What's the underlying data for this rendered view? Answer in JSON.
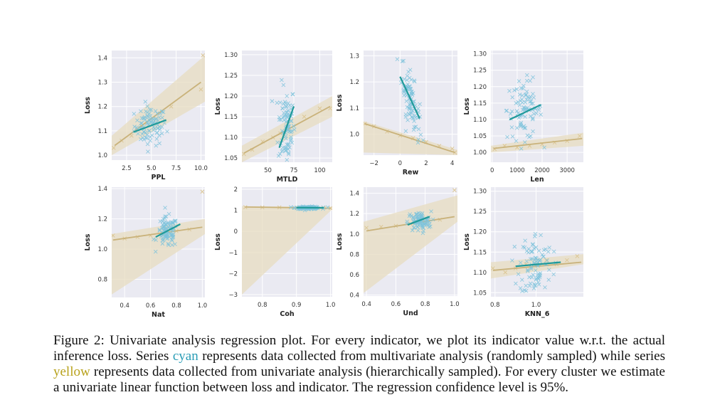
{
  "figure": {
    "colors": {
      "cyan_points": "#7ec3dc",
      "cyan_line": "#1f9a9a",
      "yellow_points": "#dcc796",
      "yellow_line": "#c9b27a",
      "yellow_band": "#e7dcc0",
      "panel_bg": "#eaeaf2"
    }
  },
  "chart_data": [
    {
      "type": "scatter",
      "xlabel": "PPL",
      "ylabel": "Loss",
      "xlim": [
        1.0,
        10.4
      ],
      "ylim": [
        0.98,
        1.43
      ],
      "xticks": [
        2.5,
        5.0,
        7.5,
        10.0
      ],
      "xtick_labels": [
        "2.5",
        "5.0",
        "7.5",
        "10.0"
      ],
      "yticks": [
        1.0,
        1.1,
        1.2,
        1.3,
        1.4
      ],
      "ytick_labels": [
        "1.0",
        "1.1",
        "1.2",
        "1.3",
        "1.4"
      ],
      "cyan": {
        "xc": 4.9,
        "xs": 0.8,
        "yc": 1.12,
        "ys": 0.04,
        "line": [
          [
            3.2,
            1.095
          ],
          [
            6.5,
            1.145
          ]
        ]
      },
      "yellow": {
        "x": [
          1.2,
          2.0,
          3.0,
          4.0,
          5.5,
          7.0,
          10.0,
          10.2
        ],
        "y": [
          1.03,
          1.06,
          1.08,
          1.12,
          1.15,
          1.2,
          1.27,
          1.41
        ],
        "line": [
          [
            1.3,
            1.04
          ],
          [
            10.0,
            1.3
          ]
        ],
        "band_lo": [
          1.0,
          1.22
        ],
        "band_hi": [
          1.08,
          1.41
        ]
      }
    },
    {
      "type": "scatter",
      "xlabel": "MTLD",
      "ylabel": "Loss",
      "xlim": [
        25,
        112
      ],
      "ylim": [
        1.04,
        1.31
      ],
      "xticks": [
        50,
        75,
        100
      ],
      "xtick_labels": [
        "50",
        "75",
        "100"
      ],
      "yticks": [
        1.05,
        1.1,
        1.15,
        1.2,
        1.25,
        1.3
      ],
      "ytick_labels": [
        "1.05",
        "1.10",
        "1.15",
        "1.20",
        "1.25",
        "1.30"
      ],
      "cyan": {
        "xc": 68,
        "xs": 4,
        "yc": 1.13,
        "ys": 0.05,
        "line": [
          [
            61,
            1.075
          ],
          [
            75,
            1.175
          ]
        ]
      },
      "yellow": {
        "x": [
          27,
          35,
          45,
          55,
          62,
          70,
          85,
          100,
          110
        ],
        "y": [
          1.06,
          1.07,
          1.09,
          1.1,
          1.11,
          1.12,
          1.15,
          1.17,
          1.17
        ],
        "line": [
          [
            27,
            1.062
          ],
          [
            110,
            1.175
          ]
        ],
        "band_lo": [
          1.04,
          1.15
        ],
        "band_hi": [
          1.08,
          1.2
        ]
      }
    },
    {
      "type": "scatter",
      "xlabel": "Rew",
      "ylabel": "Loss",
      "xlim": [
        -2.8,
        4.4
      ],
      "ylim": [
        0.92,
        1.32
      ],
      "xticks": [
        -2,
        0,
        2,
        4
      ],
      "xtick_labels": [
        "−2",
        "0",
        "2",
        "4"
      ],
      "yticks": [
        1.0,
        1.1,
        1.2,
        1.3
      ],
      "ytick_labels": [
        "1.0",
        "1.1",
        "1.2",
        "1.3"
      ],
      "cyan": {
        "xc": 0.8,
        "xs": 0.35,
        "yc": 1.13,
        "ys": 0.05,
        "line": [
          [
            0.0,
            1.22
          ],
          [
            1.5,
            1.06
          ]
        ],
        "slope": -0.1
      },
      "yellow": {
        "x": [
          -2.7,
          -2.0,
          -1.0,
          0,
          1.0,
          2.0,
          3.0,
          4.0,
          4.2
        ],
        "y": [
          1.04,
          1.03,
          1.01,
          0.995,
          0.985,
          0.97,
          0.955,
          0.945,
          0.93
        ],
        "line": [
          [
            -2.7,
            1.04
          ],
          [
            4.2,
            0.93
          ]
        ],
        "band_lo": [
          0.93,
          0.92
        ],
        "band_hi": [
          1.05,
          0.94
        ]
      }
    },
    {
      "type": "scatter",
      "xlabel": "Len",
      "ylabel": "Loss",
      "xlim": [
        -50,
        3650
      ],
      "ylim": [
        0.97,
        1.31
      ],
      "xticks": [
        0,
        1000,
        2000,
        3000
      ],
      "xtick_labels": [
        "0",
        "1000",
        "2000",
        "3000"
      ],
      "yticks": [
        1.0,
        1.05,
        1.1,
        1.15,
        1.2,
        1.25,
        1.3
      ],
      "ytick_labels": [
        "1.00",
        "1.05",
        "1.10",
        "1.15",
        "1.20",
        "1.25",
        "1.30"
      ],
      "cyan": {
        "xc": 1300,
        "xs": 350,
        "yc": 1.13,
        "ys": 0.045,
        "line": [
          [
            700,
            1.1
          ],
          [
            1950,
            1.145
          ]
        ]
      },
      "yellow": {
        "x": [
          100,
          500,
          1000,
          1500,
          2000,
          2500,
          3000,
          3500
        ],
        "y": [
          1.01,
          1.02,
          1.015,
          1.02,
          1.025,
          1.03,
          1.035,
          1.05
        ],
        "line": [
          [
            50,
            1.012
          ],
          [
            3600,
            1.042
          ]
        ],
        "band_lo": [
          1.0,
          1.02
        ],
        "band_hi": [
          1.02,
          1.06
        ]
      }
    },
    {
      "type": "scatter",
      "xlabel": "Nat",
      "ylabel": "Loss",
      "xlim": [
        0.3,
        1.02
      ],
      "ylim": [
        0.68,
        1.41
      ],
      "xticks": [
        0.4,
        0.6,
        0.8,
        1.0
      ],
      "xtick_labels": [
        "0.4",
        "0.6",
        "0.8",
        "1.0"
      ],
      "yticks": [
        0.8,
        1.0,
        1.2,
        1.4
      ],
      "ytick_labels": [
        "0.8",
        "1.0",
        "1.2",
        "1.4"
      ],
      "cyan": {
        "xc": 0.73,
        "xs": 0.04,
        "yc": 1.11,
        "ys": 0.05,
        "line": [
          [
            0.64,
            1.08
          ],
          [
            0.83,
            1.165
          ]
        ]
      },
      "yellow": {
        "x": [
          0.31,
          0.4,
          0.5,
          0.6,
          0.7,
          0.8,
          0.9,
          1.0
        ],
        "y": [
          1.09,
          1.07,
          1.08,
          1.09,
          1.1,
          1.12,
          1.13,
          1.38
        ],
        "line": [
          [
            0.31,
            1.06
          ],
          [
            1.0,
            1.145
          ]
        ],
        "band_lo": [
          0.7,
          1.1
        ],
        "band_hi": [
          1.1,
          1.2
        ]
      }
    },
    {
      "type": "scatter",
      "xlabel": "Coh",
      "ylabel": "Loss",
      "xlim": [
        0.74,
        1.005
      ],
      "ylim": [
        -3.1,
        2.1
      ],
      "xticks": [
        0.8,
        0.9,
        1.0
      ],
      "xtick_labels": [
        "0.8",
        "0.9",
        "1.0"
      ],
      "yticks": [
        -3,
        -2,
        -1,
        0,
        1,
        2
      ],
      "ytick_labels": [
        "−3",
        "−2",
        "−1",
        "0",
        "1",
        "2"
      ],
      "cyan": {
        "xc": 0.935,
        "xs": 0.018,
        "yc": 1.12,
        "ys": 0.03,
        "line": [
          [
            0.9,
            1.13
          ],
          [
            0.98,
            1.12
          ]
        ]
      },
      "yellow": {
        "x": [
          0.75,
          0.8,
          0.85,
          0.9,
          0.95,
          0.98,
          1.0
        ],
        "y": [
          1.15,
          1.14,
          1.14,
          1.13,
          1.12,
          1.12,
          1.1
        ],
        "line": [
          [
            0.75,
            1.16
          ],
          [
            1.0,
            1.1
          ]
        ],
        "band_lo": [
          -3.0,
          1.05
        ],
        "band_hi": [
          1.2,
          1.17
        ]
      }
    },
    {
      "type": "scatter",
      "xlabel": "Und",
      "ylabel": "Loss",
      "xlim": [
        0.38,
        1.02
      ],
      "ylim": [
        0.39,
        1.46
      ],
      "xticks": [
        0.4,
        0.6,
        0.8,
        1.0
      ],
      "xtick_labels": [
        "0.4",
        "0.6",
        "0.8",
        "1.0"
      ],
      "yticks": [
        0.4,
        0.6,
        0.8,
        1.0,
        1.2,
        1.4
      ],
      "ytick_labels": [
        "0.4",
        "0.6",
        "0.8",
        "1.0",
        "1.2",
        "1.4"
      ],
      "cyan": {
        "xc": 0.76,
        "xs": 0.04,
        "yc": 1.12,
        "ys": 0.05,
        "line": [
          [
            0.68,
            1.09
          ],
          [
            0.83,
            1.17
          ]
        ]
      },
      "yellow": {
        "x": [
          0.4,
          0.5,
          0.6,
          0.7,
          0.8,
          0.9,
          1.0
        ],
        "y": [
          1.06,
          1.07,
          1.08,
          1.1,
          1.12,
          1.14,
          1.43
        ],
        "line": [
          [
            0.4,
            1.03
          ],
          [
            1.0,
            1.17
          ]
        ],
        "band_lo": [
          0.42,
          1.12
        ],
        "band_hi": [
          1.12,
          1.38
        ]
      }
    },
    {
      "type": "scatter",
      "xlabel": "KNN_6",
      "ylabel": "Loss",
      "xlim": [
        0.78,
        1.23
      ],
      "ylim": [
        1.04,
        1.31
      ],
      "xticks": [
        0.8,
        1.0
      ],
      "xtick_labels": [
        "0.8",
        "1.0"
      ],
      "yticks": [
        1.05,
        1.1,
        1.15,
        1.2,
        1.25,
        1.3
      ],
      "ytick_labels": [
        "1.05",
        "1.10",
        "1.15",
        "1.20",
        "1.25",
        "1.30"
      ],
      "cyan": {
        "xc": 1.0,
        "xs": 0.04,
        "yc": 1.12,
        "ys": 0.04,
        "line": [
          [
            0.9,
            1.115
          ],
          [
            1.12,
            1.125
          ]
        ]
      },
      "yellow": {
        "x": [
          0.79,
          0.85,
          0.9,
          0.95,
          1.0,
          1.05,
          1.1,
          1.15,
          1.2
        ],
        "y": [
          1.11,
          1.1,
          1.11,
          1.12,
          1.12,
          1.13,
          1.12,
          1.13,
          1.14
        ],
        "line": [
          [
            0.79,
            1.105
          ],
          [
            1.22,
            1.125
          ]
        ],
        "band_lo": [
          1.085,
          1.12
        ],
        "band_hi": [
          1.125,
          1.145
        ]
      }
    }
  ],
  "caption": {
    "part1": "Figure 2: Univariate analysis regression plot. For every indicator, we plot its indicator value w.r.t. the actual inference loss. Series ",
    "cyan_word": "cyan",
    "part2": " represents data collected from multivariate analysis (randomly sampled) while series ",
    "yellow_word": "yellow",
    "part3": " represents data collected from univariate analysis (hierarchically sampled). For every cluster we estimate a univariate linear function between loss and indicator. The regression confidence level is 95%."
  }
}
